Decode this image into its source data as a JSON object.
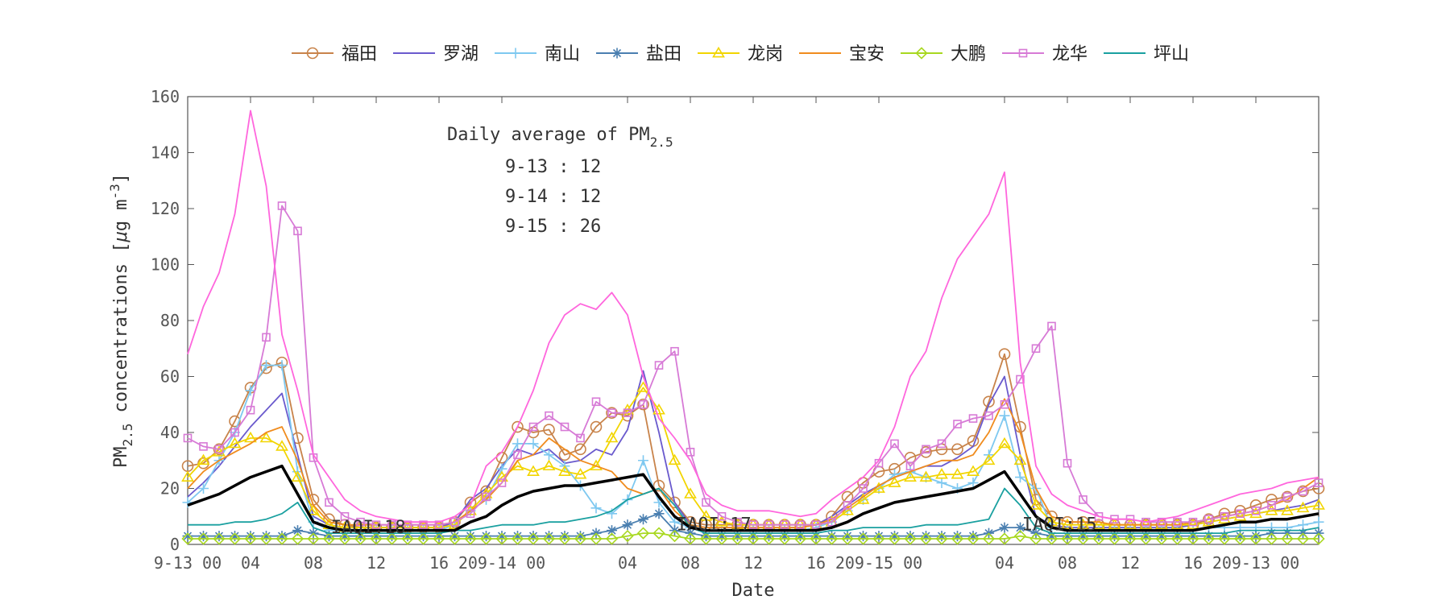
{
  "chart_data": {
    "type": "line",
    "xlabel": "Date",
    "ylabel_main": "PM",
    "ylabel_sub": "2.5",
    "ylabel_rest": " concentrations [",
    "ylabel_mu": "μ",
    "ylabel_unit": "g m",
    "ylabel_exp": "-3",
    "ylabel_close": "]",
    "ylim": [
      0,
      160
    ],
    "xlim": [
      0,
      72
    ],
    "y_ticks": [
      "0",
      "20",
      "40",
      "60",
      "80",
      "100",
      "120",
      "140",
      "160"
    ],
    "x_ticks": [
      {
        "x": 0,
        "label": "9-13 00"
      },
      {
        "x": 4,
        "label": "04"
      },
      {
        "x": 8,
        "label": "08"
      },
      {
        "x": 12,
        "label": "12"
      },
      {
        "x": 16,
        "label": "16"
      },
      {
        "x": 20,
        "label": "209-14 00"
      },
      {
        "x": 28,
        "label": "04"
      },
      {
        "x": 32,
        "label": "08"
      },
      {
        "x": 36,
        "label": "12"
      },
      {
        "x": 40,
        "label": "16"
      },
      {
        "x": 44,
        "label": "209-15 00"
      },
      {
        "x": 52,
        "label": "04"
      },
      {
        "x": 56,
        "label": "08"
      },
      {
        "x": 60,
        "label": "12"
      },
      {
        "x": 64,
        "label": "16"
      },
      {
        "x": 68,
        "label": "209-13 00"
      }
    ],
    "annotation": {
      "title": "Daily average of PM",
      "title_sub": "2.5",
      "lines": [
        "9-13 : 12",
        "9-14 : 12",
        "9-15 : 26"
      ]
    },
    "iaqi_labels": [
      {
        "x": 11.5,
        "y": 4,
        "text": "IAQI:18"
      },
      {
        "x": 33.5,
        "y": 5,
        "text": "IAQI:17"
      },
      {
        "x": 55.5,
        "y": 5,
        "text": "IAQI:15"
      }
    ],
    "series": [
      {
        "name": "福田",
        "color": "#c8834a",
        "marker": "circle",
        "values": [
          28,
          29,
          34,
          44,
          56,
          63,
          65,
          38,
          16,
          9,
          7,
          6,
          6,
          6,
          6,
          6,
          6,
          8,
          15,
          19,
          31,
          42,
          40,
          41,
          32,
          34,
          42,
          47,
          46,
          50,
          21,
          15,
          8,
          7,
          7,
          7,
          7,
          7,
          7,
          7,
          7,
          10,
          17,
          22,
          26,
          27,
          31,
          33,
          34,
          34,
          37,
          51,
          68,
          42,
          16,
          10,
          8,
          8,
          7,
          7,
          7,
          7,
          7,
          7,
          7,
          9,
          11,
          12,
          14,
          16,
          17,
          19,
          20
        ]
      },
      {
        "name": "罗湖",
        "color": "#6a5acd",
        "marker": "none",
        "values": [
          17,
          22,
          28,
          35,
          42,
          48,
          54,
          32,
          10,
          7,
          6,
          6,
          6,
          6,
          6,
          6,
          6,
          8,
          16,
          20,
          28,
          34,
          32,
          34,
          29,
          30,
          34,
          32,
          41,
          62,
          40,
          15,
          7,
          6,
          6,
          6,
          6,
          6,
          6,
          6,
          7,
          10,
          14,
          18,
          21,
          24,
          26,
          28,
          28,
          31,
          35,
          50,
          60,
          32,
          10,
          7,
          6,
          6,
          6,
          6,
          6,
          6,
          6,
          6,
          7,
          8,
          9,
          10,
          11,
          12,
          13,
          14,
          16
        ]
      },
      {
        "name": "南山",
        "color": "#7ec8f0",
        "marker": "plus",
        "values": [
          15,
          20,
          30,
          40,
          55,
          64,
          64,
          26,
          8,
          5,
          5,
          5,
          5,
          5,
          5,
          5,
          5,
          7,
          12,
          16,
          27,
          36,
          36,
          32,
          28,
          21,
          13,
          11,
          16,
          30,
          15,
          8,
          6,
          5,
          5,
          5,
          5,
          5,
          5,
          5,
          6,
          8,
          12,
          16,
          20,
          25,
          26,
          24,
          22,
          20,
          22,
          32,
          46,
          24,
          20,
          6,
          5,
          5,
          5,
          5,
          5,
          5,
          5,
          5,
          5,
          6,
          6,
          6,
          6,
          6,
          6,
          7,
          8
        ]
      },
      {
        "name": "盐田",
        "color": "#4a7fb0",
        "marker": "star",
        "values": [
          3,
          3,
          3,
          3,
          3,
          3,
          3,
          5,
          4,
          3,
          3,
          3,
          3,
          3,
          3,
          3,
          3,
          3,
          3,
          3,
          3,
          3,
          3,
          3,
          3,
          3,
          4,
          5,
          7,
          9,
          11,
          5,
          4,
          3,
          3,
          3,
          3,
          3,
          3,
          3,
          3,
          3,
          3,
          3,
          3,
          3,
          3,
          3,
          3,
          3,
          3,
          4,
          6,
          6,
          4,
          3,
          3,
          3,
          3,
          3,
          3,
          3,
          3,
          3,
          3,
          3,
          3,
          3,
          3,
          4,
          4,
          4,
          4
        ]
      },
      {
        "name": "龙岗",
        "color": "#f2d500",
        "marker": "triangle",
        "values": [
          24,
          30,
          33,
          36,
          38,
          38,
          35,
          24,
          12,
          7,
          6,
          6,
          6,
          6,
          6,
          6,
          6,
          7,
          12,
          18,
          24,
          28,
          26,
          28,
          26,
          25,
          28,
          38,
          48,
          56,
          48,
          30,
          18,
          10,
          8,
          7,
          7,
          7,
          7,
          7,
          7,
          8,
          12,
          16,
          20,
          22,
          24,
          24,
          25,
          25,
          26,
          30,
          36,
          30,
          14,
          8,
          7,
          7,
          7,
          7,
          7,
          7,
          7,
          7,
          7,
          8,
          9,
          10,
          11,
          12,
          12,
          13,
          14
        ]
      },
      {
        "name": "宝安",
        "color": "#f08c1e",
        "marker": "none",
        "values": [
          20,
          26,
          30,
          33,
          36,
          40,
          42,
          30,
          14,
          8,
          7,
          7,
          7,
          7,
          7,
          7,
          7,
          8,
          12,
          16,
          22,
          30,
          32,
          38,
          34,
          30,
          28,
          26,
          20,
          18,
          20,
          12,
          7,
          6,
          6,
          6,
          6,
          6,
          6,
          6,
          7,
          9,
          13,
          17,
          21,
          24,
          26,
          28,
          30,
          30,
          32,
          40,
          52,
          40,
          20,
          10,
          8,
          8,
          8,
          7,
          7,
          7,
          7,
          7,
          8,
          9,
          10,
          11,
          12,
          14,
          16,
          20,
          24
        ]
      },
      {
        "name": "大鹏",
        "color": "#a8d820",
        "marker": "diamond",
        "values": [
          2,
          2,
          2,
          2,
          2,
          2,
          2,
          2,
          2,
          2,
          2,
          2,
          2,
          2,
          2,
          2,
          2,
          2,
          2,
          2,
          2,
          2,
          2,
          2,
          2,
          2,
          2,
          2,
          3,
          4,
          4,
          3,
          2,
          2,
          2,
          2,
          2,
          2,
          2,
          2,
          2,
          2,
          2,
          2,
          2,
          2,
          2,
          2,
          2,
          2,
          2,
          2,
          2,
          3,
          2,
          2,
          2,
          2,
          2,
          2,
          2,
          2,
          2,
          2,
          2,
          2,
          2,
          2,
          2,
          2,
          2,
          2,
          2
        ]
      },
      {
        "name": "龙华",
        "color": "#d77ad6",
        "marker": "square",
        "values": [
          38,
          35,
          34,
          40,
          48,
          74,
          121,
          112,
          31,
          15,
          10,
          8,
          7,
          7,
          7,
          7,
          7,
          8,
          11,
          17,
          22,
          32,
          42,
          46,
          42,
          38,
          51,
          47,
          47,
          50,
          64,
          69,
          33,
          15,
          10,
          8,
          7,
          7,
          7,
          7,
          7,
          8,
          14,
          20,
          29,
          36,
          28,
          34,
          36,
          43,
          45,
          46,
          50,
          59,
          70,
          78,
          29,
          16,
          10,
          9,
          9,
          8,
          8,
          8,
          8,
          9,
          10,
          11,
          12,
          14,
          17,
          19,
          22
        ]
      },
      {
        "name": "坪山",
        "color": "#1aa0a0",
        "marker": "none",
        "values": [
          7,
          7,
          7,
          8,
          8,
          9,
          11,
          15,
          6,
          4,
          4,
          4,
          4,
          4,
          4,
          4,
          4,
          5,
          5,
          6,
          7,
          7,
          7,
          8,
          8,
          9,
          10,
          12,
          16,
          18,
          20,
          14,
          6,
          4,
          4,
          4,
          4,
          4,
          4,
          4,
          4,
          5,
          5,
          6,
          6,
          6,
          6,
          7,
          7,
          7,
          8,
          9,
          20,
          14,
          6,
          4,
          4,
          4,
          4,
          4,
          4,
          4,
          4,
          4,
          4,
          4,
          4,
          5,
          5,
          5,
          5,
          5,
          6
        ]
      },
      {
        "name": "",
        "color": "#ff66dd",
        "marker": "none",
        "values": [
          68,
          85,
          97,
          118,
          155,
          128,
          75,
          55,
          32,
          24,
          16,
          12,
          10,
          9,
          8,
          8,
          8,
          10,
          14,
          28,
          33,
          42,
          55,
          72,
          82,
          86,
          84,
          90,
          82,
          60,
          45,
          38,
          30,
          18,
          14,
          12,
          12,
          12,
          11,
          10,
          11,
          16,
          20,
          24,
          30,
          42,
          60,
          69,
          88,
          102,
          110,
          118,
          133,
          65,
          28,
          18,
          14,
          12,
          10,
          9,
          9,
          8,
          9,
          10,
          12,
          14,
          16,
          18,
          19,
          20,
          22,
          23,
          24
        ]
      },
      {
        "name": "",
        "color": "#000000",
        "marker": "none",
        "width": 3.5,
        "values": [
          14,
          16,
          18,
          21,
          24,
          26,
          28,
          18,
          8,
          6,
          5,
          5,
          5,
          5,
          5,
          5,
          5,
          5,
          8,
          10,
          14,
          17,
          19,
          20,
          21,
          21,
          22,
          23,
          24,
          25,
          17,
          10,
          6,
          5,
          5,
          5,
          5,
          5,
          5,
          5,
          5,
          6,
          8,
          11,
          13,
          15,
          16,
          17,
          18,
          19,
          20,
          23,
          26,
          18,
          10,
          6,
          5,
          5,
          5,
          5,
          5,
          5,
          5,
          5,
          5,
          6,
          7,
          8,
          8,
          9,
          9,
          10,
          11
        ]
      }
    ]
  }
}
